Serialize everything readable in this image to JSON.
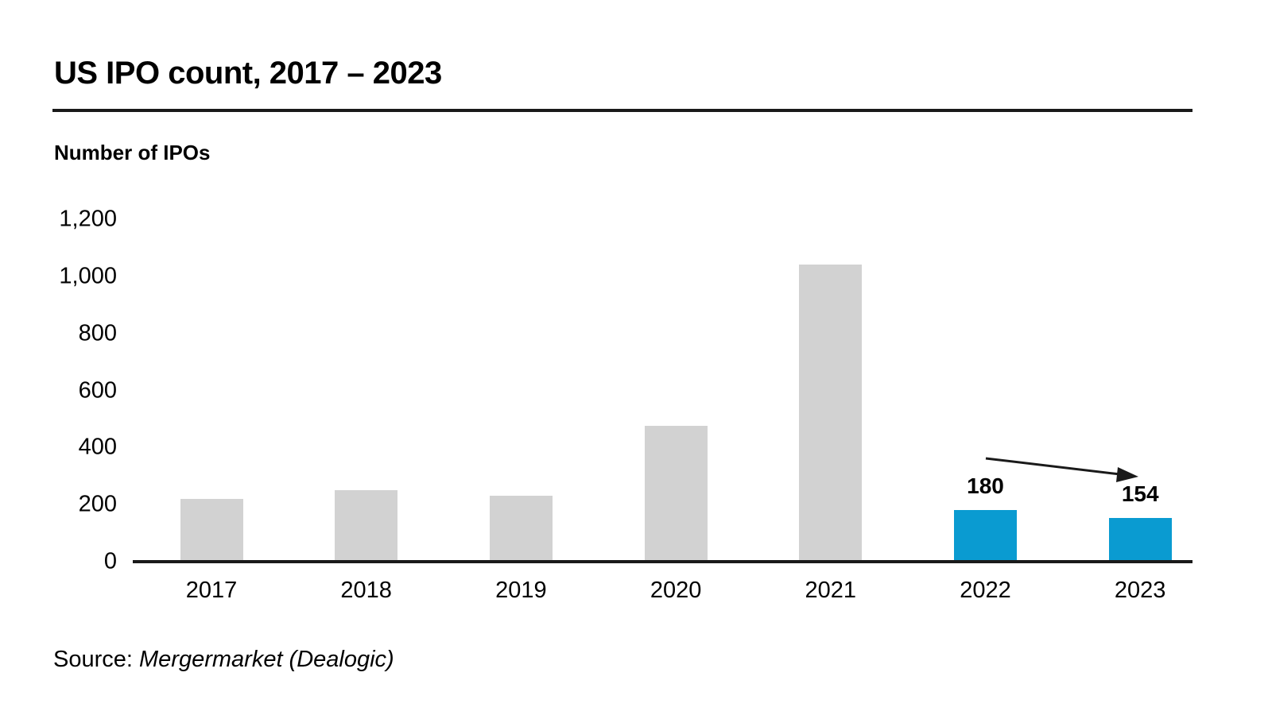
{
  "header": {
    "title": "US IPO count, 2017 – 2023"
  },
  "source": {
    "prefix": "Source:",
    "name": "Mergermarket (Dealogic)"
  },
  "colors": {
    "bar_default": "#D2D2D2",
    "bar_highlight": "#0A9BD1",
    "axis": "#1A1A1A",
    "text": "#000000"
  },
  "chart_data": {
    "type": "bar",
    "title": "US IPO count, 2017 – 2023",
    "xlabel": "",
    "ylabel": "Number of IPOs",
    "categories": [
      "2017",
      "2018",
      "2019",
      "2020",
      "2021",
      "2022",
      "2023"
    ],
    "values": [
      220,
      250,
      230,
      475,
      1040,
      180,
      154
    ],
    "data_labels": [
      null,
      null,
      null,
      null,
      null,
      "180",
      "154"
    ],
    "highlight_indices": [
      5,
      6
    ],
    "ylim": [
      0,
      1200
    ],
    "ytick_step": 200,
    "yticks": [
      "0",
      "200",
      "400",
      "600",
      "800",
      "1,000",
      "1,200"
    ],
    "grid": false,
    "legend": false,
    "annotation": {
      "type": "arrow-down-right",
      "from": "2022",
      "to": "2023"
    }
  }
}
